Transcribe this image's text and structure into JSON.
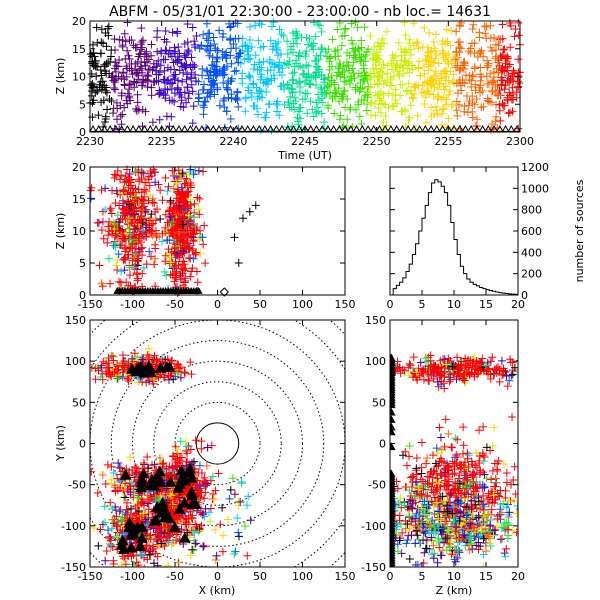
{
  "title": "ABFM - 05/31/01 22:30:00 - 23:00:00 - nb loc.=   14631",
  "chart_data": [
    {
      "id": "time-height",
      "type": "scatter",
      "xlabel": "Time (UT)",
      "ylabel": "Z (km)",
      "xlim": [
        2230,
        2300
      ],
      "ylim": [
        0,
        20
      ],
      "xticks": [
        "2230",
        "2235",
        "2240",
        "2245",
        "2250",
        "2255",
        "2300"
      ],
      "yticks": [
        "0",
        "5",
        "10",
        "15",
        "20"
      ],
      "color_scale": [
        "#000000",
        "#5a007a",
        "#3c00c8",
        "#0050ff",
        "#00c8ff",
        "#00e08c",
        "#3ce000",
        "#c8f000",
        "#ffd200",
        "#ff6400",
        "#ff0000"
      ]
    },
    {
      "id": "x-height",
      "type": "scatter",
      "xlabel": "",
      "ylabel": "Z (km)",
      "xlim": [
        -150,
        150
      ],
      "ylim": [
        0,
        20
      ],
      "xticks": [
        "-150",
        "-100",
        "-50",
        "0",
        "50",
        "100",
        "150"
      ],
      "yticks": [
        "0",
        "5",
        "10",
        "15",
        "20"
      ],
      "clusters": [
        {
          "x": -100,
          "z": 11,
          "sx": 16,
          "sz": 4.5
        },
        {
          "x": -42,
          "z": 11,
          "sx": 10,
          "sz": 4.5
        }
      ],
      "outliers": [
        {
          "x": 45,
          "z": 14
        },
        {
          "x": 38,
          "z": 13
        },
        {
          "x": 30,
          "z": 12
        },
        {
          "x": 20,
          "z": 9
        },
        {
          "x": 25,
          "z": 5
        }
      ]
    },
    {
      "id": "height-histogram",
      "type": "bar",
      "xlabel": "",
      "ylabel": "number of sources",
      "xlim": [
        0,
        20
      ],
      "ylim": [
        0,
        1200
      ],
      "xticks": [
        "0",
        "5",
        "10",
        "15",
        "20"
      ],
      "yticks": [
        "0",
        "200",
        "400",
        "600",
        "800",
        "1000",
        "1200"
      ],
      "bin_edges_start": 0,
      "bin_width": 0.5,
      "values": [
        0,
        60,
        90,
        120,
        160,
        220,
        290,
        380,
        480,
        600,
        720,
        840,
        960,
        1050,
        1080,
        1060,
        1020,
        960,
        840,
        680,
        520,
        380,
        270,
        200,
        150,
        120,
        100,
        85,
        70,
        60,
        50,
        42,
        35,
        28,
        22,
        18,
        14,
        10,
        8,
        6
      ]
    },
    {
      "id": "plan-view",
      "type": "scatter",
      "xlabel": "X (km)",
      "ylabel": "Y (km)",
      "xlim": [
        -150,
        150
      ],
      "ylim": [
        -150,
        150
      ],
      "xticks": [
        "-150",
        "-100",
        "-50",
        "0",
        "50",
        "100",
        "150"
      ],
      "yticks": [
        "-150",
        "-100",
        "-50",
        "0",
        "50",
        "100",
        "150"
      ],
      "range_rings_km": [
        25,
        50,
        75,
        100,
        125,
        150,
        175,
        200
      ],
      "clusters": [
        {
          "x": -90,
          "y": 90,
          "sx": 25,
          "sy": 7
        },
        {
          "x": -75,
          "y": -45,
          "sx": 25,
          "sy": 12
        },
        {
          "x": -35,
          "y": -55,
          "sx": 12,
          "sy": 25
        },
        {
          "x": -100,
          "y": -110,
          "sx": 15,
          "sy": 20
        },
        {
          "x": -60,
          "y": -90,
          "sx": 12,
          "sy": 15
        }
      ]
    },
    {
      "id": "height-y",
      "type": "scatter",
      "xlabel": "Z (km)",
      "ylabel": "",
      "xlim": [
        0,
        20
      ],
      "ylim": [
        -150,
        150
      ],
      "xticks": [
        "0",
        "5",
        "10",
        "15",
        "20"
      ],
      "yticks": [
        "-150",
        "-100",
        "-50",
        "0",
        "50",
        "100",
        "150"
      ],
      "clusters": [
        {
          "z": 10,
          "y": 90,
          "sz": 4.5,
          "sy": 7
        },
        {
          "z": 10,
          "y": -55,
          "sz": 4.5,
          "sy": 30
        },
        {
          "z": 10,
          "y": -100,
          "sz": 5,
          "sy": 20
        }
      ]
    }
  ]
}
